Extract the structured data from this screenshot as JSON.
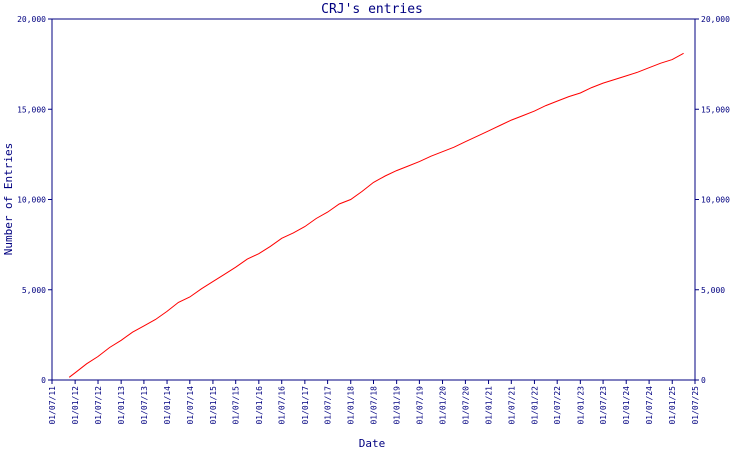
{
  "chart_data": {
    "type": "line",
    "title": "CRJ's entries",
    "xlabel": "Date",
    "ylabel": "Number of Entries",
    "ylim": [
      0,
      20000
    ],
    "grid": false,
    "y_ticks": [
      {
        "value": 0,
        "label": "0"
      },
      {
        "value": 5000,
        "label": "5,000"
      },
      {
        "value": 10000,
        "label": "10,000"
      },
      {
        "value": 15000,
        "label": "15,000"
      },
      {
        "value": 20000,
        "label": "20,000"
      }
    ],
    "x_ticks": [
      "01/07/11",
      "01/01/12",
      "01/07/12",
      "01/01/13",
      "01/07/13",
      "01/01/14",
      "01/07/14",
      "01/01/15",
      "01/07/15",
      "01/01/16",
      "01/07/16",
      "01/01/17",
      "01/07/17",
      "01/01/18",
      "01/07/18",
      "01/01/19",
      "01/07/19",
      "01/01/20",
      "01/07/20",
      "01/01/21",
      "01/07/21",
      "01/01/22",
      "01/07/22",
      "01/01/23",
      "01/07/23",
      "01/01/24",
      "01/07/24",
      "01/01/25",
      "01/07/25"
    ],
    "xlim": [
      "2011-07-01",
      "2025-07-01"
    ],
    "series": [
      {
        "color": "#ff0000",
        "x": [
          "2011-11-15",
          "2012-01-01",
          "2012-04-01",
          "2012-07-01",
          "2012-10-01",
          "2013-01-01",
          "2013-04-01",
          "2013-07-01",
          "2013-10-01",
          "2014-01-01",
          "2014-04-01",
          "2014-07-01",
          "2014-10-01",
          "2015-01-01",
          "2015-04-01",
          "2015-07-01",
          "2015-10-01",
          "2016-01-01",
          "2016-04-01",
          "2016-07-01",
          "2016-10-01",
          "2017-01-01",
          "2017-04-01",
          "2017-07-01",
          "2017-10-01",
          "2018-01-01",
          "2018-04-01",
          "2018-07-01",
          "2018-10-01",
          "2019-01-01",
          "2019-04-01",
          "2019-07-01",
          "2019-10-01",
          "2020-01-01",
          "2020-04-01",
          "2020-07-01",
          "2020-10-01",
          "2021-01-01",
          "2021-04-01",
          "2021-07-01",
          "2021-10-01",
          "2022-01-01",
          "2022-04-01",
          "2022-07-01",
          "2022-10-01",
          "2023-01-01",
          "2023-04-01",
          "2023-07-01",
          "2023-10-01",
          "2024-01-01",
          "2024-04-01",
          "2024-07-01",
          "2024-10-01",
          "2025-01-01",
          "2025-04-01"
        ],
        "y": [
          150,
          400,
          900,
          1300,
          1800,
          2200,
          2650,
          3000,
          3350,
          3800,
          4300,
          4600,
          5050,
          5450,
          5850,
          6250,
          6700,
          7000,
          7400,
          7850,
          8150,
          8500,
          8950,
          9300,
          9750,
          10000,
          10450,
          10950,
          11300,
          11600,
          11850,
          12100,
          12400,
          12650,
          12900,
          13200,
          13500,
          13800,
          14100,
          14400,
          14650,
          14900,
          15200,
          15450,
          15700,
          15900,
          16200,
          16450,
          16650,
          16850,
          17050,
          17300,
          17550,
          17750,
          18100
        ]
      }
    ]
  }
}
